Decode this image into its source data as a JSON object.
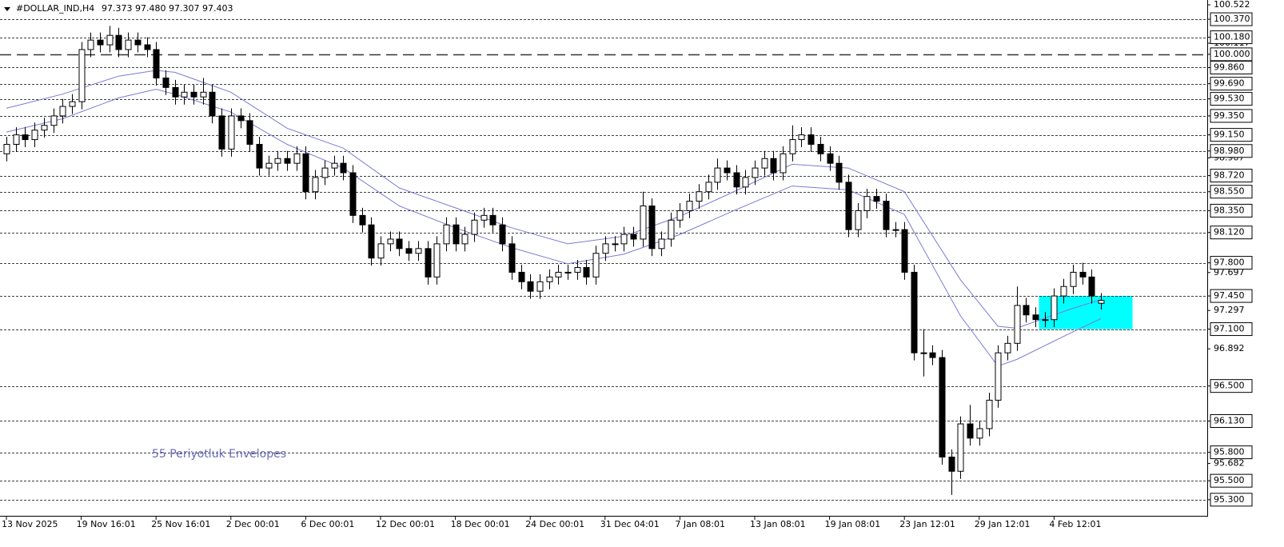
{
  "chart_data": {
    "type": "candlestick",
    "header": {
      "symbol": "#DOLLAR_IND,H4",
      "quote": "97.373 97.480 97.307 97.403"
    },
    "annotation": "55 Periyotluk Envelopes",
    "categories": [
      "13 Nov 2025",
      null,
      null,
      null,
      null,
      null,
      null,
      null,
      "19 Nov 16:01",
      null,
      null,
      null,
      null,
      null,
      null,
      null,
      "25 Nov 16:01",
      null,
      null,
      null,
      null,
      null,
      null,
      null,
      "2 Dec 00:01",
      null,
      null,
      null,
      null,
      null,
      null,
      null,
      "6 Dec 00:01",
      null,
      null,
      null,
      null,
      null,
      null,
      null,
      "12 Dec 00:01",
      null,
      null,
      null,
      null,
      null,
      null,
      null,
      "18 Dec 00:01",
      null,
      null,
      null,
      null,
      null,
      null,
      null,
      "24 Dec 00:01",
      null,
      null,
      null,
      null,
      null,
      null,
      null,
      "31 Dec 04:01",
      null,
      null,
      null,
      null,
      null,
      null,
      null,
      "7 Jan 08:01",
      null,
      null,
      null,
      null,
      null,
      null,
      null,
      "13 Jan 08:01",
      null,
      null,
      null,
      null,
      null,
      null,
      null,
      "19 Jan 08:01",
      null,
      null,
      null,
      null,
      null,
      null,
      null,
      "23 Jan 12:01",
      null,
      null,
      null,
      null,
      null,
      null,
      null,
      "29 Jan 12:01",
      null,
      null,
      null,
      null,
      null,
      null,
      null,
      "4 Feb 12:01",
      null,
      null,
      null,
      null,
      null
    ],
    "candles": {
      "open": [
        98.95,
        99.05,
        99.15,
        99.1,
        99.2,
        99.25,
        99.35,
        99.45,
        99.5,
        100.05,
        100.15,
        100.1,
        100.2,
        100.05,
        100.15,
        100.1,
        100.05,
        99.75,
        99.65,
        99.55,
        99.6,
        99.55,
        99.6,
        99.35,
        99.0,
        99.35,
        99.3,
        99.05,
        98.8,
        98.85,
        98.9,
        98.85,
        98.95,
        98.55,
        98.7,
        98.8,
        98.85,
        98.75,
        98.3,
        98.2,
        97.85,
        98.0,
        98.05,
        97.95,
        97.9,
        97.95,
        97.65,
        98.0,
        98.2,
        98.0,
        98.1,
        98.25,
        98.3,
        98.2,
        98.0,
        97.7,
        97.6,
        97.5,
        97.6,
        97.65,
        97.7,
        97.7,
        97.75,
        97.65,
        97.9,
        98.0,
        98.0,
        98.1,
        98.05,
        98.4,
        97.95,
        98.05,
        98.25,
        98.35,
        98.45,
        98.55,
        98.65,
        98.8,
        98.75,
        98.6,
        98.7,
        98.8,
        98.9,
        98.75,
        98.95,
        99.1,
        99.15,
        99.05,
        98.95,
        98.85,
        98.65,
        98.15,
        98.35,
        98.5,
        98.45,
        98.15,
        98.15,
        97.7,
        96.85,
        96.85,
        96.8,
        95.75,
        95.6,
        96.1,
        95.95,
        96.05,
        96.35,
        96.85,
        96.95,
        97.35,
        97.25,
        97.2,
        97.2,
        97.45,
        97.55,
        97.7,
        97.65,
        97.373
      ],
      "high": [
        99.13,
        99.23,
        99.23,
        99.28,
        99.33,
        99.43,
        99.53,
        99.58,
        100.13,
        100.23,
        100.23,
        100.3,
        100.28,
        100.23,
        100.23,
        100.18,
        100.13,
        99.83,
        99.73,
        99.68,
        99.68,
        99.75,
        99.68,
        99.43,
        99.43,
        99.43,
        99.38,
        99.13,
        98.93,
        98.98,
        98.98,
        99.03,
        99.03,
        98.78,
        98.88,
        98.93,
        98.93,
        98.83,
        98.38,
        98.28,
        98.08,
        98.13,
        98.13,
        98.03,
        98.03,
        98.03,
        98.08,
        98.28,
        98.28,
        98.18,
        98.33,
        98.38,
        98.38,
        98.28,
        98.08,
        97.78,
        97.68,
        97.68,
        97.73,
        97.78,
        97.78,
        97.83,
        97.83,
        97.98,
        98.08,
        98.08,
        98.18,
        98.18,
        98.55,
        98.48,
        98.13,
        98.33,
        98.43,
        98.53,
        98.63,
        98.73,
        98.9,
        98.88,
        98.83,
        98.78,
        98.88,
        98.98,
        98.98,
        99.03,
        99.25,
        99.23,
        99.23,
        99.13,
        99.03,
        98.93,
        98.73,
        98.43,
        98.58,
        98.58,
        98.53,
        98.23,
        98.23,
        97.78,
        97.1,
        96.93,
        96.88,
        95.83,
        96.18,
        96.3,
        96.13,
        96.43,
        96.93,
        97.03,
        97.55,
        97.43,
        97.33,
        97.28,
        97.53,
        97.63,
        97.78,
        97.8,
        97.73,
        97.48
      ],
      "low": [
        98.87,
        98.97,
        99.02,
        99.02,
        99.12,
        99.17,
        99.27,
        99.37,
        99.42,
        99.97,
        100.02,
        100.02,
        99.97,
        99.97,
        100.02,
        99.97,
        99.67,
        99.57,
        99.47,
        99.47,
        99.47,
        99.47,
        99.27,
        98.92,
        98.92,
        99.22,
        98.97,
        98.72,
        98.72,
        98.77,
        98.77,
        98.77,
        98.47,
        98.47,
        98.62,
        98.72,
        98.67,
        98.22,
        98.12,
        97.77,
        97.77,
        97.92,
        97.87,
        97.82,
        97.82,
        97.57,
        97.57,
        97.92,
        97.92,
        97.92,
        98.02,
        98.17,
        98.12,
        97.92,
        97.62,
        97.52,
        97.42,
        97.42,
        97.52,
        97.57,
        97.62,
        97.62,
        97.57,
        97.57,
        97.82,
        97.92,
        97.92,
        97.97,
        97.97,
        97.87,
        97.87,
        97.97,
        98.17,
        98.27,
        98.37,
        98.47,
        98.57,
        98.67,
        98.52,
        98.52,
        98.62,
        98.72,
        98.67,
        98.67,
        98.87,
        99.02,
        98.97,
        98.87,
        98.77,
        98.57,
        98.07,
        98.07,
        98.27,
        98.37,
        98.07,
        98.07,
        97.62,
        96.77,
        96.6,
        96.72,
        95.67,
        95.35,
        95.52,
        95.87,
        95.87,
        95.97,
        96.27,
        96.77,
        96.87,
        97.17,
        97.12,
        97.12,
        97.12,
        97.37,
        97.47,
        97.57,
        97.37,
        97.307
      ],
      "close": [
        99.05,
        99.15,
        99.1,
        99.2,
        99.25,
        99.35,
        99.45,
        99.5,
        100.05,
        100.15,
        100.1,
        100.2,
        100.05,
        100.15,
        100.1,
        100.05,
        99.75,
        99.65,
        99.55,
        99.6,
        99.55,
        99.6,
        99.35,
        99.0,
        99.35,
        99.3,
        99.05,
        98.8,
        98.85,
        98.9,
        98.85,
        98.95,
        98.55,
        98.7,
        98.8,
        98.85,
        98.75,
        98.3,
        98.2,
        97.85,
        98.0,
        98.05,
        97.95,
        97.9,
        97.95,
        97.65,
        98.0,
        98.2,
        98.0,
        98.1,
        98.25,
        98.3,
        98.2,
        98.0,
        97.7,
        97.6,
        97.5,
        97.6,
        97.65,
        97.7,
        97.7,
        97.75,
        97.65,
        97.9,
        98.0,
        98.0,
        98.1,
        98.05,
        98.4,
        97.95,
        98.05,
        98.25,
        98.35,
        98.45,
        98.55,
        98.65,
        98.8,
        98.75,
        98.6,
        98.7,
        98.8,
        98.9,
        98.75,
        98.95,
        99.1,
        99.15,
        99.05,
        98.95,
        98.85,
        98.65,
        98.15,
        98.35,
        98.5,
        98.45,
        98.15,
        98.15,
        97.7,
        96.85,
        96.85,
        96.8,
        95.75,
        95.6,
        96.1,
        95.95,
        96.05,
        96.35,
        96.85,
        96.95,
        97.35,
        97.25,
        97.2,
        97.2,
        97.45,
        97.55,
        97.7,
        97.65,
        97.45,
        97.403
      ],
      "up_color": "#ffffff",
      "down_color": "#000000",
      "outline_color": "#000000"
    },
    "envelopes": {
      "color": "#7b7bd6",
      "x": [
        0,
        6,
        12,
        16,
        18,
        24,
        30,
        36,
        42,
        48,
        54,
        60,
        66,
        72,
        78,
        84,
        90,
        96,
        102,
        106,
        108,
        114,
        117
      ],
      "upper": [
        99.43,
        99.58,
        99.77,
        99.83,
        99.81,
        99.6,
        99.22,
        99.01,
        98.59,
        98.38,
        98.17,
        98.0,
        98.08,
        98.29,
        98.56,
        98.84,
        98.8,
        98.55,
        97.62,
        97.13,
        97.11,
        97.32,
        97.41
      ],
      "lower": [
        99.18,
        99.32,
        99.54,
        99.63,
        99.58,
        99.39,
        99.05,
        98.8,
        98.4,
        98.17,
        97.96,
        97.79,
        97.89,
        98.1,
        98.36,
        98.61,
        98.57,
        98.31,
        97.24,
        96.71,
        96.78,
        97.07,
        97.21
      ]
    },
    "zone": {
      "x": [
        110.9,
        120.9
      ],
      "top": 97.45,
      "bottom": 97.1,
      "color": "#00ffff"
    },
    "ylim": [
      95.13,
      100.573
    ],
    "yticks": [
      100.522,
      100.117,
      98.907,
      97.697,
      97.297,
      96.892,
      95.682
    ],
    "levels": [
      {
        "value": 100.37,
        "label": "100.370"
      },
      {
        "value": 100.18,
        "label": "100.180"
      },
      {
        "value": 100,
        "label": "100.000",
        "style": "long-dash"
      },
      {
        "value": 99.86,
        "label": "99.860"
      },
      {
        "value": 99.69,
        "label": "99.690"
      },
      {
        "value": 99.53,
        "label": "99.530"
      },
      {
        "value": 99.35,
        "label": "99.350"
      },
      {
        "value": 99.15,
        "label": "99.150"
      },
      {
        "value": 98.98,
        "label": "98.980"
      },
      {
        "value": 98.72,
        "label": "98.720"
      },
      {
        "value": 98.55,
        "label": "98.550"
      },
      {
        "value": 98.35,
        "label": "98.350"
      },
      {
        "value": 98.12,
        "label": "98.120"
      },
      {
        "value": 97.8,
        "label": "97.800"
      },
      {
        "value": 97.45,
        "label": "97.450"
      },
      {
        "value": 97.1,
        "label": "97.100"
      },
      {
        "value": 96.5,
        "label": "96.500"
      },
      {
        "value": 96.13,
        "label": "96.130"
      },
      {
        "value": 95.8,
        "label": "95.800"
      },
      {
        "value": 95.5,
        "label": "95.500"
      },
      {
        "value": 95.3,
        "label": "95.300"
      }
    ]
  }
}
